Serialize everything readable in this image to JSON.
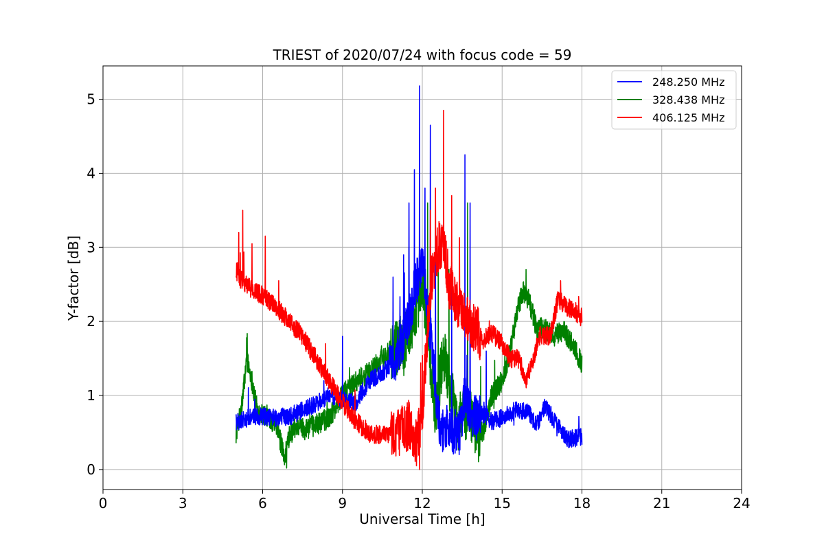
{
  "chart_data": {
    "type": "line",
    "title": "TRIEST of 2020/07/24 with focus code = 59",
    "xlabel": "Universal Time [h]",
    "ylabel": "Y-factor [dB]",
    "xlim": [
      0,
      24
    ],
    "ylim": [
      -0.27,
      5.45
    ],
    "xticks": [
      0,
      3,
      6,
      9,
      12,
      15,
      18,
      21,
      24
    ],
    "yticks": [
      0,
      1,
      2,
      3,
      4,
      5
    ],
    "grid": true,
    "legend_position": "top-right",
    "series": [
      {
        "name": "248.250 MHz",
        "color": "#0000ff",
        "noise": 0.12,
        "x": [
          5.0,
          5.5,
          6.0,
          6.5,
          7.0,
          7.5,
          8.0,
          8.5,
          9.0,
          9.5,
          10.0,
          10.5,
          11.0,
          11.3,
          11.6,
          11.8,
          12.0,
          12.2,
          12.4,
          12.6,
          12.8,
          13.0,
          13.2,
          13.4,
          13.6,
          13.8,
          14.0,
          14.3,
          14.6,
          15.0,
          15.5,
          16.0,
          16.3,
          16.6,
          17.0,
          17.5,
          18.0
        ],
        "y": [
          0.65,
          0.7,
          0.72,
          0.7,
          0.72,
          0.8,
          0.88,
          1.0,
          0.95,
          0.9,
          1.2,
          1.3,
          1.5,
          1.8,
          2.2,
          2.6,
          2.8,
          2.2,
          1.5,
          0.7,
          0.5,
          0.6,
          0.5,
          0.5,
          1.0,
          0.8,
          0.7,
          0.75,
          0.65,
          0.7,
          0.8,
          0.78,
          0.6,
          0.85,
          0.65,
          0.4,
          0.45
        ],
        "spikes": [
          [
            5.7,
            0.95
          ],
          [
            8.3,
            1.2
          ],
          [
            9.0,
            1.8
          ],
          [
            10.9,
            2.6
          ],
          [
            11.3,
            2.9
          ],
          [
            11.5,
            3.6
          ],
          [
            11.7,
            4.05
          ],
          [
            11.9,
            5.18
          ],
          [
            12.1,
            3.8
          ],
          [
            12.3,
            4.65
          ],
          [
            12.5,
            3.2
          ],
          [
            13.1,
            2.8
          ],
          [
            13.6,
            4.25
          ],
          [
            13.8,
            3.6
          ],
          [
            14.4,
            1.6
          ]
        ]
      },
      {
        "name": "328.438 MHz",
        "color": "#008000",
        "noise": 0.15,
        "x": [
          5.0,
          5.2,
          5.4,
          5.6,
          5.8,
          6.0,
          6.3,
          6.6,
          6.8,
          7.0,
          7.3,
          7.6,
          8.0,
          8.5,
          9.0,
          9.5,
          10.0,
          10.5,
          11.0,
          11.5,
          11.8,
          12.0,
          12.3,
          12.5,
          12.8,
          13.0,
          13.3,
          13.6,
          14.0,
          14.3,
          14.6,
          15.0,
          15.3,
          15.6,
          15.8,
          16.0,
          16.3,
          16.6,
          17.0,
          17.3,
          17.6,
          17.8,
          18.0
        ],
        "y": [
          0.5,
          0.8,
          1.5,
          1.2,
          0.8,
          0.75,
          0.7,
          0.5,
          0.15,
          0.45,
          0.6,
          0.55,
          0.6,
          0.7,
          1.0,
          1.2,
          1.3,
          1.5,
          1.65,
          1.8,
          2.2,
          2.6,
          1.5,
          0.8,
          1.6,
          1.2,
          0.6,
          0.8,
          0.6,
          0.5,
          1.0,
          1.2,
          1.6,
          2.2,
          2.4,
          2.3,
          1.9,
          1.9,
          1.8,
          1.9,
          1.7,
          1.6,
          1.4
        ],
        "spikes": [
          [
            5.4,
            1.78
          ],
          [
            6.9,
            0.02
          ],
          [
            11.5,
            3.0
          ],
          [
            11.9,
            3.8
          ],
          [
            12.2,
            3.6
          ],
          [
            12.6,
            2.8
          ],
          [
            13.0,
            2.7
          ],
          [
            13.7,
            3.6
          ],
          [
            15.9,
            2.7
          ],
          [
            17.6,
            1.85
          ]
        ]
      },
      {
        "name": "406.125 MHz",
        "color": "#ff0000",
        "noise": 0.13,
        "x": [
          5.0,
          5.2,
          5.5,
          6.0,
          6.5,
          7.0,
          7.5,
          8.0,
          8.5,
          9.0,
          9.5,
          10.0,
          10.5,
          11.0,
          11.5,
          11.8,
          12.0,
          12.3,
          12.6,
          12.8,
          13.0,
          13.3,
          13.6,
          14.0,
          14.3,
          14.6,
          15.0,
          15.3,
          15.6,
          15.9,
          16.1,
          16.4,
          16.8,
          17.1,
          17.4,
          17.7,
          18.0
        ],
        "y": [
          2.7,
          2.55,
          2.45,
          2.35,
          2.2,
          2.0,
          1.8,
          1.5,
          1.2,
          0.9,
          0.65,
          0.5,
          0.45,
          0.5,
          0.6,
          0.35,
          0.8,
          2.5,
          3.0,
          3.1,
          2.5,
          2.2,
          2.1,
          1.9,
          1.75,
          1.85,
          1.7,
          1.5,
          1.5,
          1.2,
          1.4,
          1.8,
          1.8,
          2.3,
          2.2,
          2.15,
          2.05
        ],
        "spikes": [
          [
            5.1,
            3.2
          ],
          [
            5.25,
            3.5
          ],
          [
            5.6,
            3.05
          ],
          [
            6.1,
            3.15
          ],
          [
            6.6,
            2.55
          ],
          [
            11.9,
            0.0
          ],
          [
            12.3,
            3.5
          ],
          [
            12.5,
            3.8
          ],
          [
            12.8,
            4.85
          ],
          [
            13.1,
            3.7
          ],
          [
            17.2,
            2.55
          ]
        ]
      }
    ]
  }
}
